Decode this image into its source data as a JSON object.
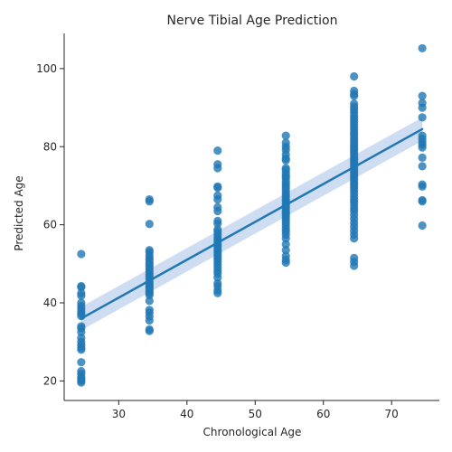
{
  "chart_data": {
    "type": "scatter",
    "title": "Nerve Tibial Age Prediction",
    "xlabel": "Chronological Age",
    "ylabel": "Predicted Age",
    "xlim": [
      22,
      77
    ],
    "ylim": [
      15,
      109
    ],
    "xticks": [
      30,
      40,
      50,
      60,
      70
    ],
    "yticks": [
      20,
      40,
      60,
      80,
      100
    ],
    "grid": false,
    "colors": {
      "points": "#1f77b4",
      "line": "#1f77b4",
      "band": "#aec7e8"
    },
    "regression": {
      "x": [
        24.5,
        74.5
      ],
      "y": [
        36.0,
        84.5
      ],
      "ci_lower": [
        33.0,
        81.5
      ],
      "ci_upper": [
        39.0,
        87.5
      ]
    },
    "groups": [
      {
        "x": 24.5,
        "y": [
          52.5,
          44.3,
          44.0,
          42.5,
          41.8,
          40.0,
          39.2,
          38.5,
          37.8,
          37.2,
          36.6,
          34.0,
          33.5,
          32.5,
          31.0,
          30.0,
          29.2,
          28.5,
          28.0,
          24.8,
          22.5,
          21.8,
          21.0,
          20.5,
          20.0,
          19.6
        ]
      },
      {
        "x": 34.5,
        "y": [
          66.5,
          66.0,
          60.2,
          53.5,
          53.0,
          52.2,
          51.5,
          51.0,
          50.3,
          49.8,
          49.2,
          48.6,
          48.0,
          47.4,
          46.8,
          46.2,
          45.5,
          45.0,
          44.5,
          44.0,
          43.5,
          43.0,
          42.5,
          42.0,
          40.5,
          38.2,
          37.5,
          36.5,
          35.5,
          33.2,
          32.8
        ]
      },
      {
        "x": 44.5,
        "y": [
          79.0,
          75.5,
          74.5,
          69.8,
          69.5,
          67.5,
          66.5,
          64.5,
          63.5,
          61.0,
          60.3,
          58.8,
          58.2,
          57.5,
          56.8,
          56.2,
          55.5,
          54.8,
          54.2,
          53.5,
          53.0,
          52.4,
          51.8,
          51.2,
          50.5,
          49.8,
          49.0,
          48.2,
          47.5,
          46.5,
          45.0,
          44.3,
          43.2,
          42.5
        ]
      },
      {
        "x": 54.5,
        "y": [
          82.8,
          81.0,
          80.0,
          79.2,
          78.0,
          77.0,
          76.5,
          74.5,
          74.0,
          73.2,
          72.5,
          72.0,
          71.2,
          70.5,
          69.8,
          69.2,
          68.5,
          67.8,
          67.2,
          66.5,
          66.0,
          65.3,
          64.7,
          64.2,
          63.5,
          63.0,
          62.4,
          61.8,
          61.2,
          60.5,
          59.8,
          59.0,
          58.3,
          57.5,
          56.5,
          55.0,
          53.5,
          52.0,
          51.0,
          50.3
        ]
      },
      {
        "x": 64.5,
        "y": [
          98.0,
          94.3,
          93.5,
          93.0,
          91.0,
          90.2,
          89.5,
          88.8,
          88.0,
          87.2,
          86.5,
          85.8,
          85.0,
          84.3,
          83.6,
          83.0,
          82.3,
          81.7,
          81.0,
          80.4,
          79.8,
          79.2,
          78.6,
          78.0,
          77.4,
          76.8,
          76.2,
          75.6,
          75.0,
          74.4,
          73.8,
          73.2,
          72.6,
          72.0,
          71.4,
          70.8,
          70.2,
          69.5,
          68.8,
          68.0,
          67.2,
          66.5,
          65.8,
          65.0,
          64.2,
          63.5,
          62.5,
          61.5,
          60.5,
          59.5,
          58.5,
          57.5,
          56.5,
          51.5,
          50.5,
          49.5
        ]
      },
      {
        "x": 74.5,
        "y": [
          105.2,
          93.0,
          91.2,
          90.0,
          87.5,
          82.8,
          82.0,
          81.2,
          80.5,
          79.8,
          77.2,
          75.0,
          70.3,
          69.8,
          66.3,
          66.0,
          59.8
        ]
      }
    ]
  }
}
